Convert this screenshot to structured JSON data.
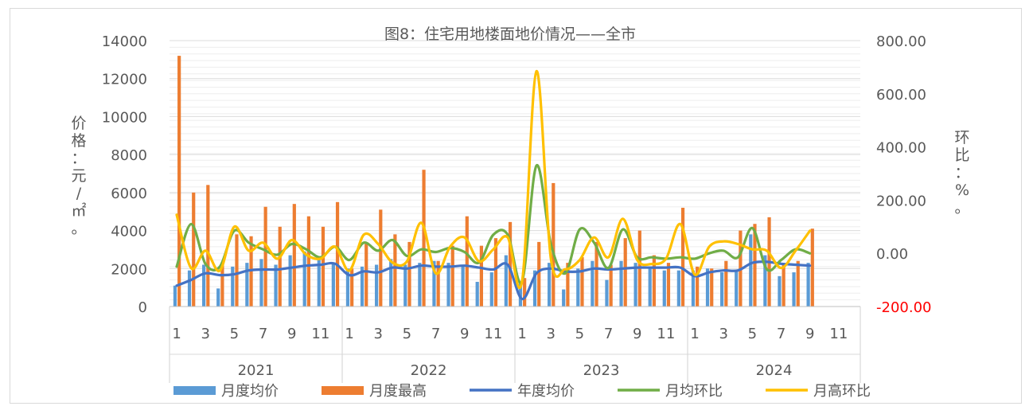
{
  "chart_data": {
    "type": "bar",
    "title": "图8：住宅用地楼面地价情况——全市",
    "left_axis_label": "价格：元/㎡。",
    "right_axis_label": "环比：%。",
    "left_ticks": [
      "0",
      "2000",
      "4000",
      "6000",
      "8000",
      "10000",
      "12000",
      "14000"
    ],
    "right_ticks": [
      "-200.00",
      "0.00",
      "200.00",
      "400.00",
      "600.00",
      "800.00"
    ],
    "right_tick_colors": {
      "-200.00": "#ff0000"
    },
    "ylim_left": [
      0,
      14000
    ],
    "ylim_right": [
      -200,
      800
    ],
    "years": [
      "2021",
      "2022",
      "2023",
      "2024"
    ],
    "month_tick_labels": [
      "1",
      "",
      "3",
      "",
      "5",
      "",
      "7",
      "",
      "9",
      "",
      "11",
      ""
    ],
    "months": 12,
    "grid": true,
    "legend": "bottom",
    "series": [
      {
        "name": "月度均价",
        "type": "bar",
        "axis": "left",
        "color": "#5b9bd5",
        "values": [
          1100,
          1900,
          2200,
          950,
          2100,
          2300,
          2500,
          2200,
          2700,
          2900,
          2600,
          2300,
          2000,
          2100,
          2200,
          2500,
          2200,
          2300,
          2400,
          2300,
          2200,
          1300,
          1800,
          2700,
          1200,
          1900,
          2300,
          900,
          2000,
          2400,
          1400,
          2400,
          2300,
          2100,
          1900,
          1900,
          1900,
          2000,
          1800,
          1900,
          3800,
          2700,
          1600,
          1800,
          2300,
          null,
          null,
          null
        ]
      },
      {
        "name": "月度最高",
        "type": "bar",
        "axis": "left",
        "color": "#ed7d31",
        "values": [
          13200,
          6000,
          6400,
          2300,
          3800,
          3700,
          5250,
          4200,
          5400,
          4750,
          4200,
          5500,
          2000,
          3300,
          5100,
          3800,
          3400,
          7200,
          2400,
          3200,
          4750,
          3200,
          3600,
          4450,
          1500,
          3400,
          6500,
          2300,
          2600,
          3400,
          2200,
          3600,
          4000,
          2700,
          2300,
          5200,
          2100,
          2000,
          2400,
          4000,
          4350,
          4700,
          2200,
          2400,
          4100,
          null,
          null,
          null
        ]
      },
      {
        "name": "年度均价",
        "type": "line",
        "axis": "left",
        "color": "#4472c4",
        "values": [
          1100,
          1400,
          1750,
          1650,
          1700,
          1900,
          1950,
          1950,
          2050,
          2150,
          2200,
          2250,
          1650,
          1850,
          1800,
          2050,
          2000,
          2150,
          2100,
          2100,
          2150,
          2050,
          1950,
          2200,
          400,
          1750,
          2000,
          1850,
          1850,
          2000,
          1950,
          2000,
          2050,
          2050,
          2050,
          2050,
          1600,
          1800,
          1900,
          1900,
          2300,
          2350,
          2250,
          2200,
          2150,
          null,
          null,
          null
        ]
      },
      {
        "name": "月均环比",
        "type": "line",
        "axis": "right",
        "color": "#70ad47",
        "values": [
          -50,
          110,
          -40,
          -50,
          85,
          40,
          15,
          -5,
          35,
          15,
          -15,
          25,
          -25,
          40,
          10,
          50,
          -10,
          15,
          5,
          20,
          5,
          -35,
          70,
          70,
          -105,
          330,
          35,
          -75,
          90,
          40,
          -55,
          90,
          -15,
          -15,
          -20,
          -15,
          -20,
          0,
          10,
          -15,
          95,
          -60,
          -25,
          15,
          0,
          null,
          null,
          null
        ]
      },
      {
        "name": "月高环比",
        "type": "line",
        "axis": "right",
        "color": "#ffc000",
        "values": [
          145,
          -55,
          10,
          -65,
          100,
          10,
          40,
          -20,
          50,
          -5,
          -20,
          25,
          -65,
          70,
          35,
          -35,
          -30,
          115,
          -75,
          25,
          60,
          -30,
          15,
          60,
          -105,
          685,
          -20,
          -60,
          -25,
          60,
          -15,
          130,
          -25,
          -40,
          -20,
          110,
          -80,
          25,
          45,
          35,
          15,
          10,
          -55,
          10,
          85,
          null,
          null,
          null
        ]
      }
    ]
  }
}
